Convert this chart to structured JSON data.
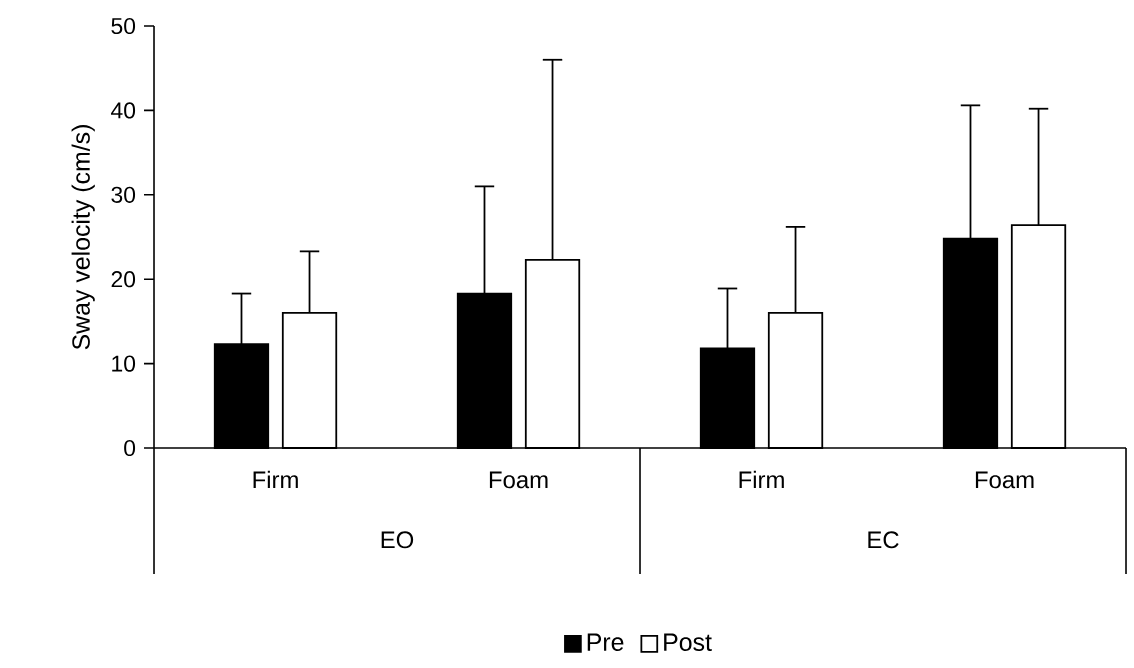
{
  "chart_data": {
    "type": "bar",
    "ylabel": "Sway velocity (cm/s)",
    "categories": [
      "Firm",
      "Foam",
      "Firm",
      "Foam"
    ],
    "series": [
      {
        "name": "Pre",
        "color": "#000000",
        "values": [
          12.3,
          18.3,
          11.8,
          24.8
        ],
        "errors": [
          [
            12.3,
            18.3
          ],
          [
            18.3,
            31.0
          ],
          [
            11.8,
            18.9
          ],
          [
            24.8,
            40.6
          ]
        ]
      },
      {
        "name": "Post",
        "color": "#ffffff",
        "values": [
          16.0,
          22.3,
          16.0,
          26.4
        ],
        "errors": [
          [
            16.0,
            23.3
          ],
          [
            22.3,
            46.0
          ],
          [
            16.0,
            26.2
          ],
          [
            26.4,
            40.2
          ]
        ]
      }
    ],
    "annotations": [
      "EO",
      "EC"
    ],
    "ylim": [
      0,
      50
    ],
    "yticks": [
      0,
      10,
      20,
      30,
      40,
      50
    ],
    "grid": false,
    "legend": "bottom"
  }
}
